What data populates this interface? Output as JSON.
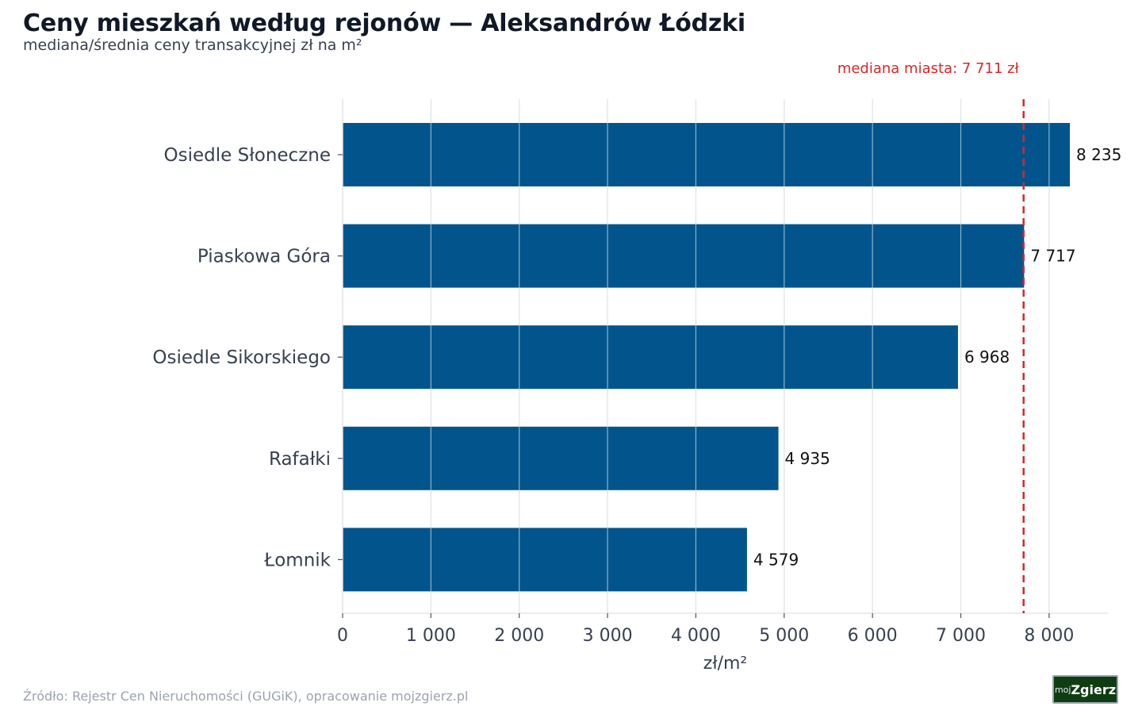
{
  "header": {
    "title": "Ceny mieszkań według rejonów — Aleksandrów Łódzki",
    "subtitle": "mediana/średnia ceny transakcyjnej zł na m²"
  },
  "footer": {
    "source": "Źródło: Rejestr Cen Nieruchomości (GUGiK), opracowanie mojzgierz.pl",
    "logo_prefix": "moj",
    "logo_name": "Zgierz"
  },
  "colors": {
    "bar": "#02558c",
    "reference_line": "#dc2626",
    "grid": "#e5e7eb",
    "axis_text": "#374151",
    "value_label": "#111111"
  },
  "chart_data": {
    "type": "bar",
    "orientation": "horizontal",
    "categories": [
      "Osiedle Słoneczne",
      "Piaskowa Góra",
      "Osiedle Sikorskiego",
      "Rafałki",
      "Łomnik"
    ],
    "values": [
      8235,
      7717,
      6968,
      4935,
      4579
    ],
    "value_labels": [
      "8 235",
      "7 717",
      "6 968",
      "4 935",
      "4 579"
    ],
    "xlabel": "zł/m²",
    "xlim": [
      0,
      8650
    ],
    "xticks": [
      0,
      1000,
      2000,
      3000,
      4000,
      5000,
      6000,
      7000,
      8000
    ],
    "xtick_labels": [
      "0",
      "1 000",
      "2 000",
      "3 000",
      "4 000",
      "5 000",
      "6 000",
      "7 000",
      "8 000"
    ],
    "grid": true,
    "reference_line": {
      "value": 7711,
      "label": "mediana miasta: 7 711 zł",
      "style": "dashed"
    }
  }
}
